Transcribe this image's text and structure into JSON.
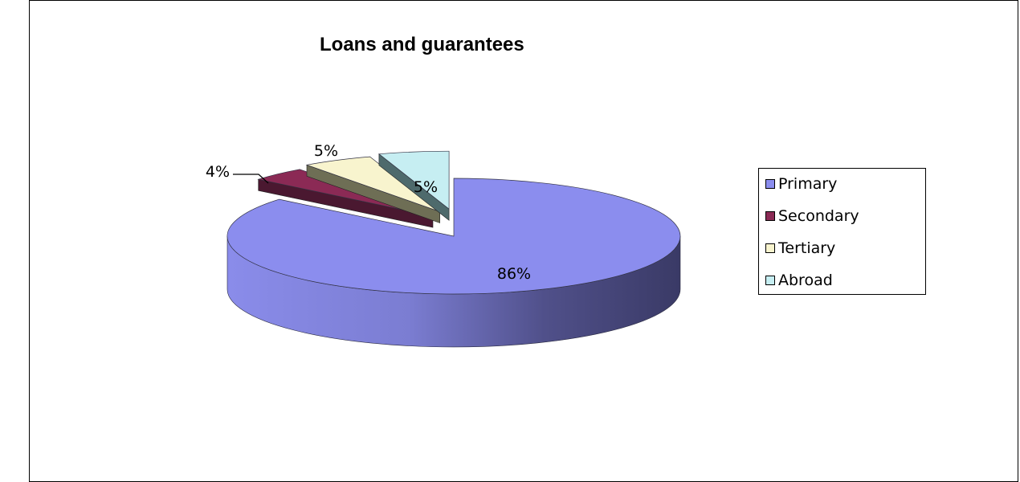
{
  "chart_data": {
    "type": "pie",
    "title": "Loans and guarantees",
    "slices": [
      {
        "name": "Primary",
        "value": 86,
        "label": "86%",
        "color": "#8b8dee"
      },
      {
        "name": "Secondary",
        "value": 4,
        "label": "4%",
        "color": "#8b2a55"
      },
      {
        "name": "Tertiary",
        "value": 5,
        "label": "5%",
        "color": "#f8f4ce"
      },
      {
        "name": "Abroad",
        "value": 5,
        "label": "5%",
        "color": "#c6eef2"
      }
    ],
    "exploded": true,
    "three_d": true,
    "legend": {
      "position": "right"
    }
  }
}
